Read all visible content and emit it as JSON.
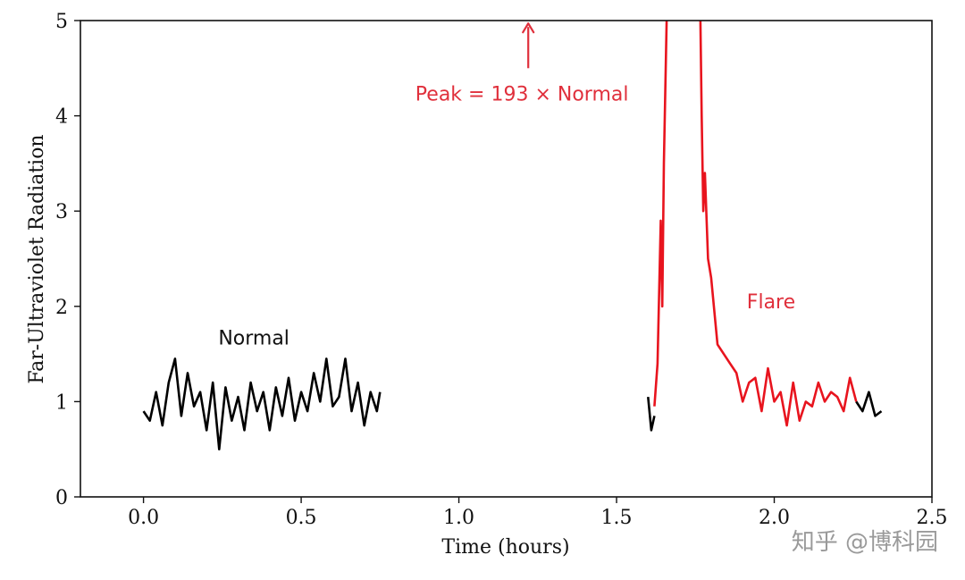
{
  "chart_data": {
    "type": "line",
    "xlabel": "Time (hours)",
    "ylabel": "Far-Ultraviolet Radiation",
    "xlim": [
      -0.2,
      2.5
    ],
    "ylim": [
      0,
      5
    ],
    "xticks": [
      "0.0",
      "0.5",
      "1.0",
      "1.5",
      "2.0",
      "2.5"
    ],
    "yticks": [
      "0",
      "1",
      "2",
      "3",
      "4",
      "5"
    ],
    "grid": false,
    "colors": {
      "normal": "#000000",
      "flare": "#e8141e",
      "annotation": "#e0303c"
    },
    "series": [
      {
        "color": "#000000",
        "x": [
          0.0,
          0.02,
          0.04,
          0.06,
          0.08,
          0.1,
          0.12,
          0.14,
          0.16,
          0.18,
          0.2,
          0.22,
          0.24,
          0.26,
          0.28,
          0.3,
          0.32,
          0.34,
          0.36,
          0.38,
          0.4,
          0.42,
          0.44,
          0.46,
          0.48,
          0.5,
          0.52,
          0.54,
          0.56,
          0.58,
          0.6,
          0.62,
          0.64,
          0.66,
          0.68,
          0.7,
          0.72,
          0.74,
          0.75
        ],
        "y": [
          0.9,
          0.8,
          1.1,
          0.75,
          1.2,
          1.45,
          0.85,
          1.3,
          0.95,
          1.1,
          0.7,
          1.2,
          0.5,
          1.15,
          0.8,
          1.05,
          0.7,
          1.2,
          0.9,
          1.1,
          0.7,
          1.15,
          0.85,
          1.25,
          0.8,
          1.1,
          0.9,
          1.3,
          1.0,
          1.45,
          0.95,
          1.05,
          1.45,
          0.9,
          1.2,
          0.75,
          1.1,
          0.9,
          1.1
        ]
      },
      {
        "color": "#000000",
        "x": [
          1.6,
          1.61,
          1.62
        ],
        "y": [
          1.05,
          0.7,
          0.85
        ]
      },
      {
        "color": "#e8141e",
        "x": [
          1.62,
          1.63,
          1.64,
          1.645,
          1.65,
          1.66,
          1.67,
          1.7,
          1.73,
          1.76,
          1.765,
          1.77,
          1.775,
          1.78,
          1.79,
          1.8,
          1.82,
          1.84,
          1.86,
          1.88,
          1.9,
          1.92,
          1.94,
          1.96,
          1.98,
          2.0,
          2.02,
          2.04,
          2.06,
          2.08,
          2.1,
          2.12,
          2.14,
          2.16,
          2.18,
          2.2,
          2.22,
          2.24,
          2.26
        ],
        "y": [
          0.95,
          1.4,
          2.9,
          2.0,
          3.5,
          5.2,
          5.5,
          5.5,
          5.5,
          5.5,
          5.2,
          4.0,
          3.0,
          3.4,
          2.5,
          2.3,
          1.6,
          1.5,
          1.4,
          1.3,
          1.0,
          1.2,
          1.25,
          0.9,
          1.35,
          1.0,
          1.1,
          0.75,
          1.2,
          0.8,
          1.0,
          0.95,
          1.2,
          1.0,
          1.1,
          1.05,
          0.9,
          1.25,
          1.0
        ]
      },
      {
        "color": "#000000",
        "x": [
          2.26,
          2.28,
          2.3,
          2.32,
          2.34
        ],
        "y": [
          1.0,
          0.9,
          1.1,
          0.85,
          0.9
        ]
      }
    ],
    "annotations": [
      {
        "text": "Normal",
        "x": 0.35,
        "y": 1.6,
        "color": "#000000"
      },
      {
        "text": "Flare",
        "x": 1.99,
        "y": 1.98,
        "color": "#e0303c"
      },
      {
        "text": "Peak = 193 × Normal",
        "x": 1.2,
        "y": 4.16,
        "color": "#e0303c"
      }
    ],
    "peak_arrow": {
      "x": 1.22,
      "y_start": 4.5,
      "y_end": 4.97,
      "color": "#e0303c"
    }
  },
  "watermark": "知乎 @博科园"
}
